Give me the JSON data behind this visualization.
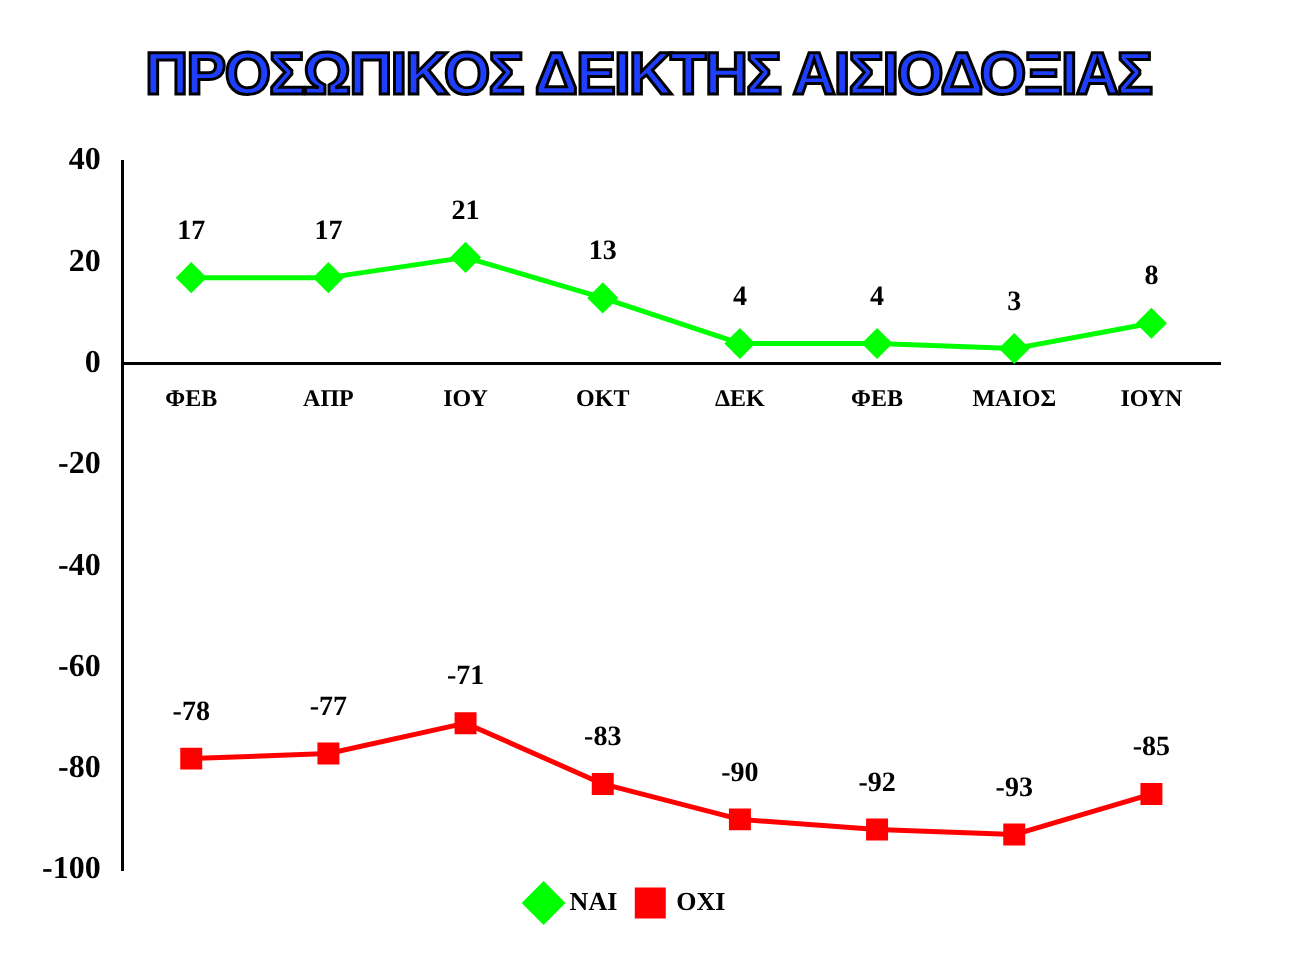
{
  "chart_data": {
    "type": "line",
    "title": "ΠΡΟΣΩΠΙΚΟΣ ΔΕΙΚΤΗΣ ΑΙΣΙΟΔΟΞΙΑΣ",
    "categories": [
      "ΦΕΒ",
      "ΑΠΡ",
      "ΙΟΥ",
      "ΟΚΤ",
      "ΔΕΚ",
      "ΦΕΒ",
      "ΜΑΙΟΣ",
      "ΙΟΥΝ"
    ],
    "series": [
      {
        "name": "ΝΑΙ",
        "color": "#00ff00",
        "marker": "diamond",
        "values": [
          17,
          17,
          21,
          13,
          4,
          4,
          3,
          8
        ]
      },
      {
        "name": "ΟΧΙ",
        "color": "#ff0000",
        "marker": "square",
        "values": [
          -78,
          -77,
          -71,
          -83,
          -90,
          -92,
          -93,
          -85
        ]
      }
    ],
    "ylim": [
      -100,
      40
    ],
    "yticks": [
      -100,
      -80,
      -60,
      -40,
      -20,
      0,
      20,
      40
    ],
    "grid": false,
    "legend": "bottom",
    "data_labels": true,
    "line_style": "solid"
  }
}
